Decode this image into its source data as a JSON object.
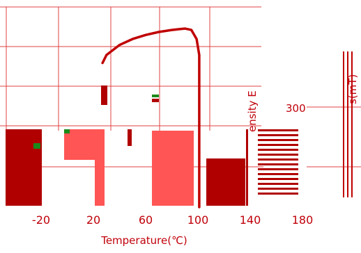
{
  "chart_data": {
    "type": "line",
    "title": "",
    "xlabel": "Temperature(℃)",
    "x_ticks": [
      -20,
      20,
      60,
      100,
      140,
      180
    ],
    "grid": true,
    "colors": {
      "line": "#c00000",
      "grid": "#e04040",
      "dark_block": "#b00000",
      "light_block": "#ff5555",
      "accent_green": "#1a8a1a"
    },
    "series": [
      {
        "x": [
          27,
          30,
          40,
          50,
          60,
          70,
          80,
          90,
          95,
          99,
          101,
          101
        ],
        "y": [
          0.72,
          0.76,
          0.81,
          0.84,
          0.86,
          0.875,
          0.885,
          0.892,
          0.885,
          0.84,
          0.76,
          0.0
        ]
      }
    ],
    "fragments": {
      "right_axis_tick": "300",
      "left_rotated_label": "ensity E",
      "right_rotated_label": "s(mT)"
    }
  }
}
